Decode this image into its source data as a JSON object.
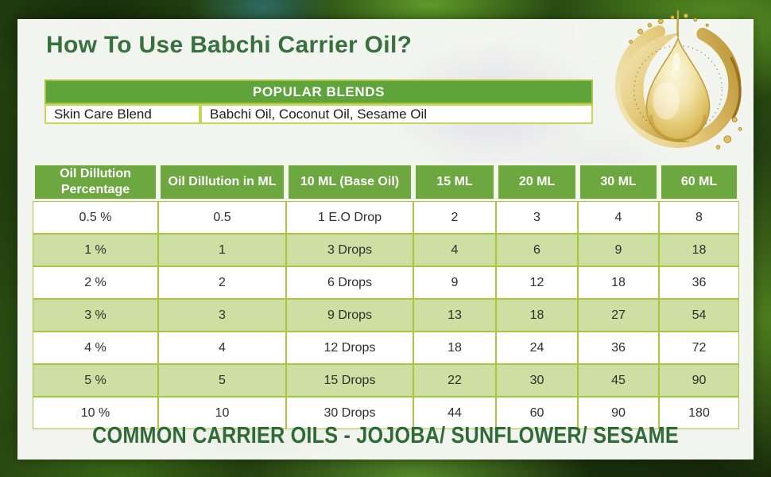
{
  "header": {
    "title": "How To Use Babchi Carrier Oil?"
  },
  "popular_blends": {
    "header": "POPULAR BLENDS",
    "rows": [
      {
        "label": "Skin Care Blend",
        "value": "Babchi Oil, Coconut Oil, Sesame Oil"
      }
    ]
  },
  "dilution_table": {
    "columns": [
      "Oil Dillution Percentage",
      "Oil Dillution in ML",
      "10 ML (Base Oil)",
      "15 ML",
      "20 ML",
      "30 ML",
      "60 ML"
    ],
    "rows": [
      [
        "0.5 %",
        "0.5",
        "1 E.O Drop",
        "2",
        "3",
        "4",
        "8"
      ],
      [
        "1 %",
        "1",
        "3 Drops",
        "4",
        "6",
        "9",
        "18"
      ],
      [
        "2 %",
        "2",
        "6 Drops",
        "9",
        "12",
        "18",
        "36"
      ],
      [
        "3 %",
        "3",
        "9 Drops",
        "13",
        "18",
        "27",
        "54"
      ],
      [
        "4 %",
        "4",
        "12 Drops",
        "18",
        "24",
        "36",
        "72"
      ],
      [
        "5 %",
        "5",
        "15 Drops",
        "22",
        "30",
        "45",
        "90"
      ],
      [
        "10 %",
        "10",
        "30 Drops",
        "44",
        "60",
        "90",
        "180"
      ]
    ]
  },
  "footer": {
    "text": "COMMON CARRIER OILS - JOJOBA/ SUNFLOWER/ SESAME"
  },
  "illustration": {
    "name": "babchi-oil-droplet"
  },
  "colors": {
    "title_green": "#37713d",
    "table_header_green": "#6ca83f",
    "blends_bar_green": "#5ea43a",
    "row_light_green": "#cddfa3",
    "grid_yellow_green": "#a8c63e",
    "footer_green": "#2f6b35",
    "oil_gold": "#d9b857"
  }
}
